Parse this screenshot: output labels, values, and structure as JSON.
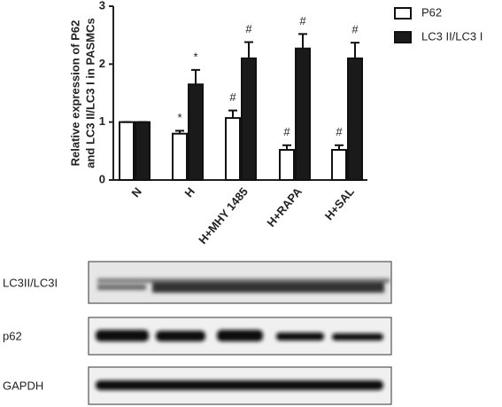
{
  "chart_data": {
    "type": "bar",
    "ylabel": [
      "Relative expression of P62",
      "and LC3 II/LC3 I in PASMCs"
    ],
    "categories": [
      "N",
      "H",
      "H+MHY 1485",
      "H+RAPA",
      "H+SAL"
    ],
    "series": [
      {
        "name": "P62",
        "color": "#ffffff",
        "values": [
          1.0,
          0.8,
          1.07,
          0.52,
          0.52
        ],
        "errors": [
          0,
          0.05,
          0.13,
          0.08,
          0.08
        ],
        "annotations": [
          null,
          "*",
          "#",
          "#",
          "#"
        ]
      },
      {
        "name": "LC3 II/LC3 I",
        "color": "#1a1a1a",
        "values": [
          1.0,
          1.65,
          2.1,
          2.27,
          2.1
        ],
        "errors": [
          0,
          0.25,
          0.28,
          0.25,
          0.27
        ],
        "annotations": [
          null,
          "*",
          "#",
          "#",
          "#"
        ]
      }
    ],
    "ylim": [
      0,
      3
    ],
    "yticks": [
      0,
      1,
      2,
      3
    ]
  },
  "blot": {
    "rows": [
      "LC3II/LC3I",
      "p62",
      "GAPDH"
    ]
  }
}
